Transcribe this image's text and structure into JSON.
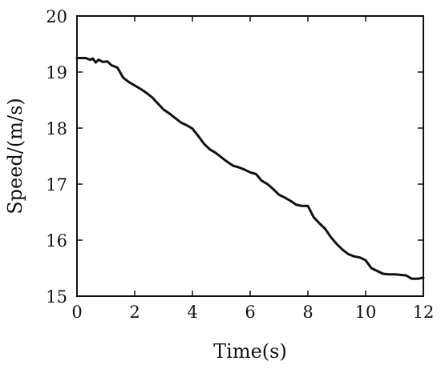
{
  "chart_data": {
    "type": "line",
    "title": "",
    "xlabel": "Time(s)",
    "ylabel": "Speed/(m/s)",
    "xlim": [
      0,
      12
    ],
    "ylim": [
      15,
      20
    ],
    "xticks": [
      0,
      2,
      4,
      6,
      8,
      10,
      12
    ],
    "yticks": [
      15,
      16,
      17,
      18,
      19,
      20
    ],
    "xtick_labels": [
      "0",
      "2",
      "4",
      "6",
      "8",
      "10",
      "12"
    ],
    "ytick_labels": [
      "15",
      "16",
      "17",
      "18",
      "19",
      "20"
    ],
    "grid": false,
    "legend": false,
    "colors": {
      "line": "#111111",
      "axes": "#111111",
      "background": "#ffffff"
    },
    "series": [
      {
        "x": [
          0,
          0.3,
          0.45,
          0.55,
          0.65,
          0.75,
          0.9,
          1.05,
          1.2,
          1.4,
          1.6,
          1.8,
          2.0,
          2.2,
          2.4,
          2.6,
          2.8,
          3.0,
          3.2,
          3.4,
          3.6,
          3.8,
          4.0,
          4.2,
          4.4,
          4.6,
          4.8,
          5.0,
          5.2,
          5.4,
          5.6,
          5.8,
          6.0,
          6.2,
          6.4,
          6.6,
          6.8,
          7.0,
          7.2,
          7.4,
          7.6,
          7.8,
          8.0,
          8.2,
          8.4,
          8.6,
          8.8,
          9.0,
          9.2,
          9.4,
          9.6,
          9.8,
          10.0,
          10.2,
          10.4,
          10.6,
          10.8,
          11.0,
          11.2,
          11.4,
          11.6,
          11.8,
          12.0
        ],
        "y": [
          19.25,
          19.25,
          19.22,
          19.24,
          19.17,
          19.22,
          19.18,
          19.19,
          19.12,
          19.08,
          18.9,
          18.82,
          18.76,
          18.7,
          18.63,
          18.55,
          18.44,
          18.33,
          18.26,
          18.18,
          18.1,
          18.05,
          17.99,
          17.86,
          17.72,
          17.62,
          17.56,
          17.48,
          17.4,
          17.33,
          17.3,
          17.26,
          17.21,
          17.18,
          17.06,
          17.0,
          16.91,
          16.81,
          16.76,
          16.7,
          16.63,
          16.61,
          16.61,
          16.41,
          16.3,
          16.2,
          16.05,
          15.93,
          15.83,
          15.75,
          15.71,
          15.69,
          15.64,
          15.5,
          15.45,
          15.4,
          15.39,
          15.39,
          15.38,
          15.37,
          15.31,
          15.31,
          15.33
        ]
      }
    ]
  }
}
